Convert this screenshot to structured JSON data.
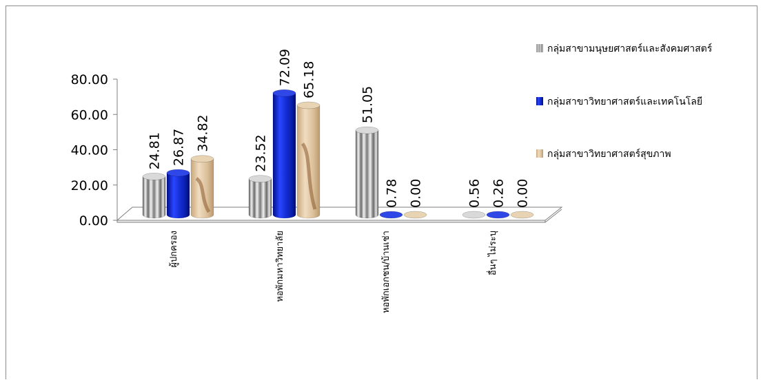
{
  "chart_data": {
    "type": "bar",
    "style": "3d-cylinder",
    "categories": [
      "ผู้ปกครอง",
      "หอพักมหาวิทยาลัย",
      "หอพักเอกชน/บ้านเช่า",
      "อื่นๆ ไม่ระบุ"
    ],
    "series": [
      {
        "name": "กลุ่มสาขามนุษยศาสตร์และสังคมศาสตร์",
        "color": "#a8a8a8",
        "values": [
          24.81,
          23.52,
          51.05,
          0.56
        ],
        "labels": [
          "24.81",
          "23.52",
          "51.05",
          "0.56"
        ]
      },
      {
        "name": "กลุ่มสาขาวิทยาศาสตร์และเทคโนโลยี",
        "color": "#1a2fd6",
        "values": [
          26.87,
          72.09,
          0.78,
          0.26
        ],
        "labels": [
          "26.87",
          "72.09",
          "0.78",
          "0.26"
        ]
      },
      {
        "name": "กลุ่มสาขาวิทยาศาสตร์สุขภาพ",
        "color": "#dcc09a",
        "values": [
          34.82,
          65.18,
          0.0,
          0.0
        ],
        "labels": [
          "34.82",
          "65.18",
          "0.00",
          "0.00"
        ]
      }
    ],
    "y_ticks": [
      "0.00",
      "20.00",
      "40.00",
      "60.00",
      "80.00"
    ],
    "ylim": [
      0,
      80
    ],
    "legend_position": "right",
    "grid": false
  }
}
